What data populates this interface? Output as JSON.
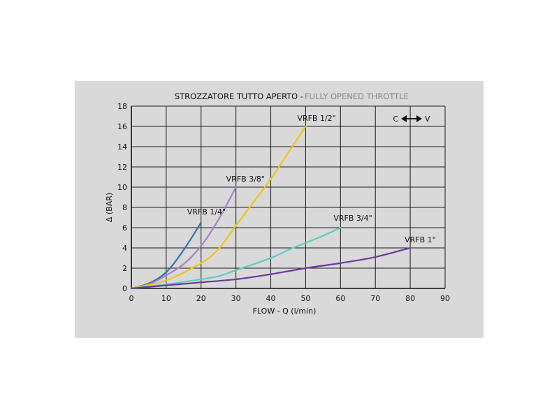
{
  "chart_data": {
    "type": "line",
    "title": "STROZZATORE TUTTO APERTO -",
    "subtitle": "FULLY OPENED THROTTLE",
    "xlabel": "FLOW - Q (l/min)",
    "ylabel": "Δ (BAR)",
    "xlim": [
      0,
      90
    ],
    "ylim": [
      0,
      18
    ],
    "xticks": [
      0,
      10,
      20,
      30,
      40,
      50,
      60,
      70,
      80,
      90
    ],
    "yticks": [
      0,
      2,
      4,
      6,
      8,
      10,
      12,
      14,
      16,
      18
    ],
    "grid": true,
    "direction_label": {
      "left": "C",
      "right": "V"
    },
    "series": [
      {
        "name": "VRFB 1/4\"",
        "color": "#3a6fb5",
        "points": [
          [
            0,
            0
          ],
          [
            5,
            0.5
          ],
          [
            10,
            1.6
          ],
          [
            15,
            3.8
          ],
          [
            20,
            6.5
          ]
        ]
      },
      {
        "name": "VRFB 3/8\"",
        "color": "#a682c4",
        "points": [
          [
            0,
            0
          ],
          [
            5,
            0.4
          ],
          [
            10,
            1.3
          ],
          [
            15,
            2.4
          ],
          [
            20,
            4.2
          ],
          [
            25,
            6.8
          ],
          [
            30,
            10
          ]
        ]
      },
      {
        "name": "VRFB 1/2\"",
        "color": "#f0c419",
        "points": [
          [
            0,
            0
          ],
          [
            10,
            0.8
          ],
          [
            20,
            2.5
          ],
          [
            25,
            3.9
          ],
          [
            30,
            6.2
          ],
          [
            35,
            8.5
          ],
          [
            40,
            10.8
          ],
          [
            45,
            13.4
          ],
          [
            50,
            16
          ]
        ]
      },
      {
        "name": "VRFB 3/4\"",
        "color": "#5fcdc0",
        "points": [
          [
            0,
            0
          ],
          [
            10,
            0.4
          ],
          [
            20,
            0.9
          ],
          [
            25,
            1.2
          ],
          [
            30,
            1.8
          ],
          [
            40,
            3.0
          ],
          [
            45,
            3.8
          ],
          [
            50,
            4.5
          ],
          [
            55,
            5.2
          ],
          [
            60,
            6
          ]
        ]
      },
      {
        "name": "VRFB 1\"",
        "color": "#6a3a9e",
        "points": [
          [
            0,
            0
          ],
          [
            10,
            0.3
          ],
          [
            20,
            0.6
          ],
          [
            30,
            0.9
          ],
          [
            40,
            1.4
          ],
          [
            50,
            2.0
          ],
          [
            60,
            2.5
          ],
          [
            70,
            3.1
          ],
          [
            80,
            4
          ]
        ]
      }
    ]
  }
}
